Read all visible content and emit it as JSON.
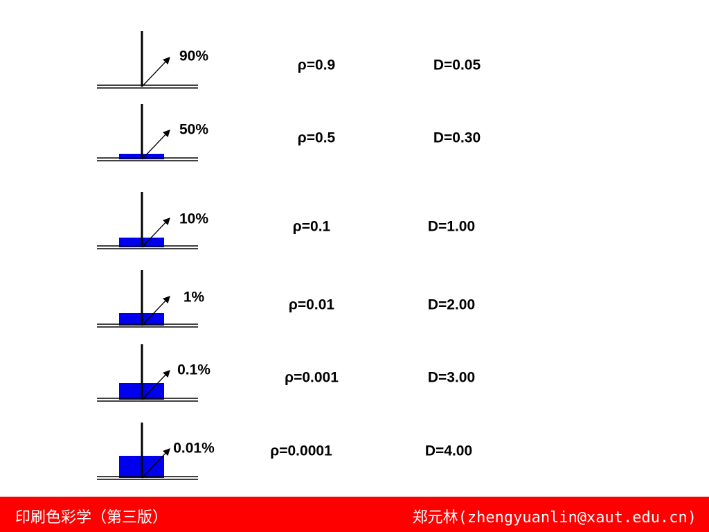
{
  "rows": [
    {
      "percent": "90%",
      "rho": "ρ=0.9",
      "density": "D=0.05"
    },
    {
      "percent": "50%",
      "rho": "ρ=0.5",
      "density": "D=0.30"
    },
    {
      "percent": "10%",
      "rho": "ρ=0.1",
      "density": "D=1.00"
    },
    {
      "percent": "1%",
      "rho": "ρ=0.01",
      "density": "D=2.00"
    },
    {
      "percent": "0.1%",
      "rho": "ρ=0.001",
      "density": "D=3.00"
    },
    {
      "percent": "0.01%",
      "rho": "ρ=0.0001",
      "density": "D=4.00"
    }
  ],
  "footer": {
    "title": "印刷色彩学（第三版）",
    "author": "郑元林(zhengyuanlin@xaut.edu.cn)"
  }
}
